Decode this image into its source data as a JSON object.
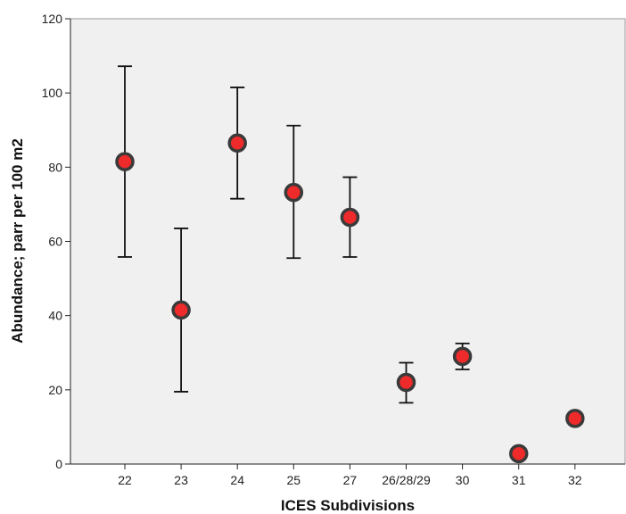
{
  "chart_data": {
    "type": "scatter",
    "title": "",
    "xlabel": "ICES Subdivisions",
    "ylabel": "Abundance; parr per 100 m2",
    "ylim": [
      0,
      120
    ],
    "yticks": [
      0,
      20,
      40,
      60,
      80,
      100,
      120
    ],
    "grid": false,
    "categories": [
      "22",
      "23",
      "24",
      "25",
      "27",
      "26/28/29",
      "30",
      "31",
      "32"
    ],
    "values": [
      81.5,
      41.5,
      86.5,
      73.2,
      66.5,
      22.0,
      29.0,
      2.8,
      12.3
    ],
    "error_low": [
      55.8,
      19.5,
      71.5,
      55.5,
      55.8,
      16.5,
      25.5,
      null,
      null
    ],
    "error_high": [
      107.2,
      63.5,
      101.5,
      91.2,
      77.3,
      27.3,
      32.5,
      null,
      null
    ],
    "marker": {
      "fill": "#ee2a2a",
      "stroke": "#3a3a3a"
    },
    "plot_background": "#f0f0f0"
  }
}
